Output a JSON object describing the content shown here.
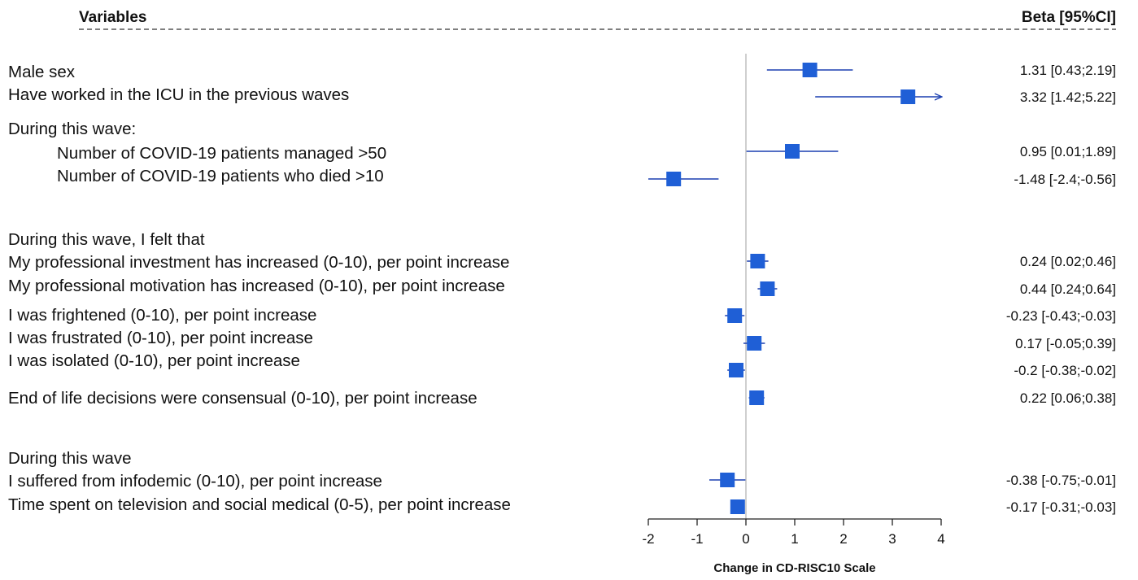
{
  "header": {
    "variables_label": "Variables",
    "beta_label": "Beta [95%CI]"
  },
  "chart_data": {
    "type": "forest",
    "xlabel": "Change in CD-RISC10 Scale",
    "xlim": [
      -2,
      4
    ],
    "xticks": [
      -2,
      -1,
      0,
      1,
      2,
      3,
      4
    ],
    "reference_line": 0,
    "marker_color": "#1f5fd6",
    "line_color": "#1a3fb0",
    "groups": [
      {
        "heading": "",
        "items": [
          {
            "label": "Male sex",
            "beta": 1.31,
            "lo": 0.43,
            "hi": 2.19,
            "text": "1.31 [0.43;2.19]"
          },
          {
            "label": "Have worked in the ICU in the previous waves",
            "beta": 3.32,
            "lo": 1.42,
            "hi": 5.22,
            "text": "3.32 [1.42;5.22]"
          }
        ]
      },
      {
        "heading": "During this wave:",
        "items": [
          {
            "label": "Number of COVID-19 patients managed >50",
            "beta": 0.95,
            "lo": 0.01,
            "hi": 1.89,
            "text": "0.95 [0.01;1.89]"
          },
          {
            "label": "Number of COVID-19 patients who died >10",
            "beta": -1.48,
            "lo": -2.4,
            "hi": -0.56,
            "text": "-1.48 [-2.4;-0.56]"
          }
        ]
      },
      {
        "heading": "During this wave, I felt that",
        "items": [
          {
            "label": "My professional investment has increased (0-10), per point increase",
            "beta": 0.24,
            "lo": 0.02,
            "hi": 0.46,
            "text": "0.24 [0.02;0.46]"
          },
          {
            "label": "My professional motivation has increased (0-10), per point increase",
            "beta": 0.44,
            "lo": 0.24,
            "hi": 0.64,
            "text": "0.44 [0.24;0.64]"
          },
          {
            "label": "I was frightened (0-10), per point increase",
            "beta": -0.23,
            "lo": -0.43,
            "hi": -0.03,
            "text": "-0.23 [-0.43;-0.03]"
          },
          {
            "label": "I was frustrated (0-10), per point increase",
            "beta": 0.17,
            "lo": -0.05,
            "hi": 0.39,
            "text": "0.17 [-0.05;0.39]"
          },
          {
            "label": "I was isolated (0-10), per point increase",
            "beta": -0.2,
            "lo": -0.38,
            "hi": -0.02,
            "text": "-0.2 [-0.38;-0.02]"
          },
          {
            "label": "End of life decisions were consensual (0-10), per point increase",
            "beta": 0.22,
            "lo": 0.06,
            "hi": 0.38,
            "text": "0.22 [0.06;0.38]"
          }
        ]
      },
      {
        "heading": "During this wave",
        "items": [
          {
            "label": "I suffered from infodemic (0-10), per point increase",
            "beta": -0.38,
            "lo": -0.75,
            "hi": -0.01,
            "text": "-0.38 [-0.75;-0.01]"
          },
          {
            "label": "Time spent on television and social medical (0-5), per point increase",
            "beta": -0.17,
            "lo": -0.31,
            "hi": -0.03,
            "text": "-0.17 [-0.31;-0.03]"
          }
        ]
      }
    ]
  }
}
